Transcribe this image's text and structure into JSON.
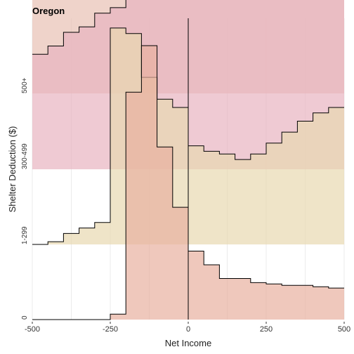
{
  "chart_data": {
    "type": "area",
    "title": "Oregon",
    "xlabel": "Net Income",
    "ylabel": "Shelter Deduction ($)",
    "xlim": [
      -500,
      500
    ],
    "x_ticks": [
      -500,
      -250,
      0,
      250,
      500
    ],
    "x_tick_labels": [
      "-500",
      "-250",
      "0",
      "250",
      "500"
    ],
    "grid": true,
    "legend": "none",
    "bin_edges": [
      -500,
      -450,
      -400,
      -350,
      -300,
      -250,
      -200,
      -150,
      -100,
      -50,
      0,
      50,
      100,
      150,
      200,
      250,
      300,
      350,
      400,
      450,
      500
    ],
    "series": [
      {
        "name": "0",
        "color": "#e8b0a0",
        "values": [
          0,
          0,
          0,
          0,
          0,
          0.02,
          0.83,
          1.0,
          0.63,
          0.41,
          0.25,
          0.2,
          0.15,
          0.15,
          0.135,
          0.13,
          0.125,
          0.125,
          0.12,
          0.115
        ]
      },
      {
        "name": "1-299",
        "color": "#e8d8b0",
        "values": [
          0,
          0.01,
          0.04,
          0.06,
          0.08,
          0.79,
          0.77,
          0.61,
          0.53,
          0.5,
          0.36,
          0.34,
          0.33,
          0.31,
          0.33,
          0.37,
          0.41,
          0.45,
          0.48,
          0.5
        ]
      },
      {
        "name": "300-499",
        "color": "#e8b4c0",
        "values": [
          0.42,
          0.45,
          0.5,
          0.52,
          0.57,
          0.59,
          0.64,
          0.65,
          0.73,
          0.75,
          0.74,
          0.74,
          0.745,
          0.75,
          0.755,
          0.75,
          0.745,
          0.74,
          0.735,
          0.73
        ]
      },
      {
        "name": "500+",
        "color": "#e8c0b4",
        "values": [
          0.45,
          0.55,
          0.58,
          0.61,
          0.64,
          0.69,
          0.72,
          0.75,
          0.79,
          0.9,
          0.95,
          0.97,
          1.0,
          0.98,
          0.95,
          0.93,
          0.9,
          0.85,
          0.8,
          0.67
        ]
      }
    ]
  }
}
